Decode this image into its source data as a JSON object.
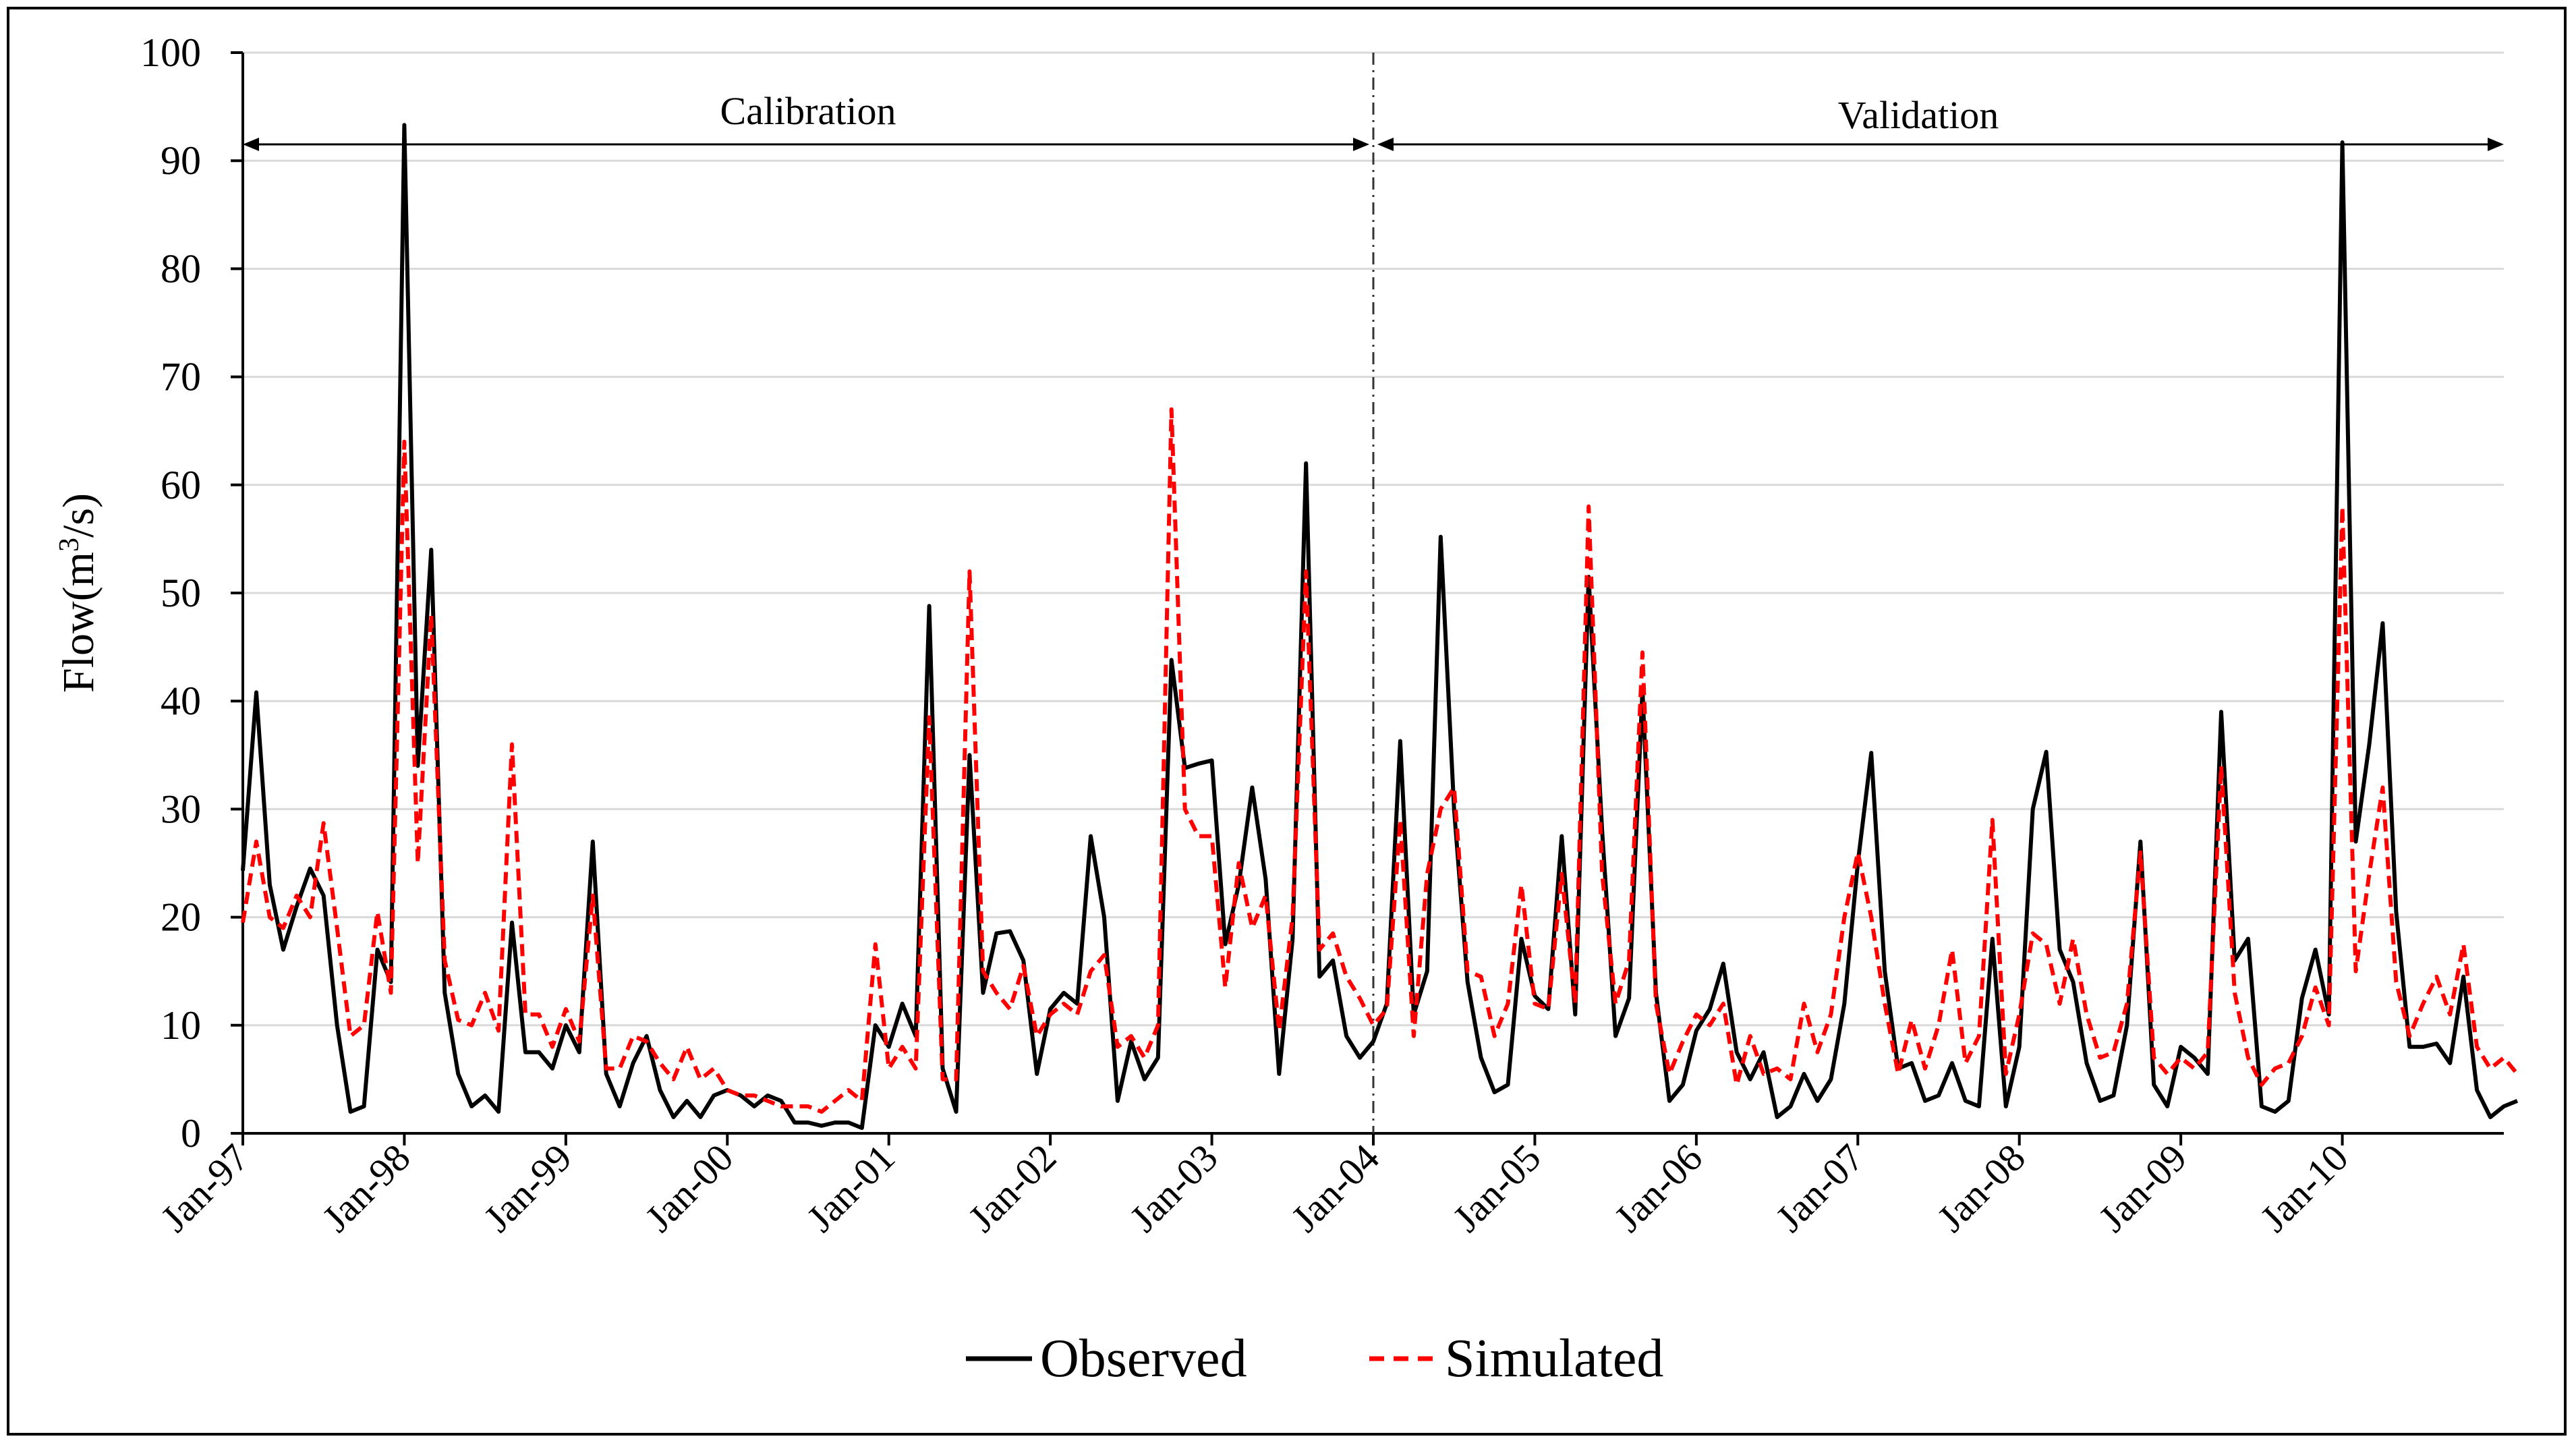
{
  "chart_data": {
    "type": "line",
    "title": "",
    "xlabel": "",
    "ylabel": "Flow(m3/s)",
    "ylabel_parts": {
      "base": "Flow(m",
      "sup": "3",
      "tail": "/s)"
    },
    "ylim": [
      0,
      100
    ],
    "yticks": [
      0,
      10,
      20,
      30,
      40,
      50,
      60,
      70,
      80,
      90,
      100
    ],
    "grid": true,
    "x_start": "Jan-97",
    "x_tick_labels": [
      "Jan-97",
      "Jan-98",
      "Jan-99",
      "Jan-00",
      "Jan-01",
      "Jan-02",
      "Jan-03",
      "Jan-04",
      "Jan-05",
      "Jan-06",
      "Jan-07",
      "Jan-08",
      "Jan-09",
      "Jan-10"
    ],
    "x_months_total": 168,
    "annotations": {
      "calibration": {
        "label": "Calibration",
        "from_month": 0,
        "to_month": 84
      },
      "validation": {
        "label": "Validation",
        "from_month": 84,
        "to_month": 168
      },
      "divider_month": 84
    },
    "legend": {
      "placement": "bottom-center"
    },
    "series": [
      {
        "name": "Observed",
        "color": "#000000",
        "style": "solid",
        "values": [
          24.3,
          40.8,
          23.0,
          17.0,
          21.0,
          24.5,
          22.0,
          10.0,
          2.0,
          2.5,
          17.0,
          14.0,
          93.3,
          34.0,
          54.0,
          13.0,
          5.5,
          2.5,
          3.5,
          2.0,
          19.5,
          7.5,
          7.5,
          6.0,
          10.0,
          7.5,
          27.0,
          5.5,
          2.5,
          6.5,
          9.0,
          4.0,
          1.5,
          3.0,
          1.5,
          3.5,
          4.0,
          3.5,
          2.5,
          3.5,
          3.0,
          1.0,
          1.0,
          0.7,
          1.0,
          1.0,
          0.5,
          10.0,
          8.0,
          12.0,
          9.0,
          48.8,
          6.0,
          2.0,
          35.0,
          13.0,
          18.5,
          18.7,
          16.0,
          5.5,
          11.5,
          13.0,
          12.0,
          27.5,
          20.0,
          3.0,
          8.5,
          5.0,
          7.0,
          43.8,
          33.8,
          34.2,
          34.5,
          17.5,
          23.0,
          32.0,
          23.5,
          5.5,
          18.0,
          62.0,
          14.5,
          16.0,
          9.0,
          7.0,
          8.5,
          12.0,
          36.3,
          11.0,
          15.0,
          55.2,
          30.0,
          14.0,
          7.0,
          3.8,
          4.5,
          18.0,
          12.7,
          11.5,
          27.5,
          11.0,
          51.5,
          28.0,
          9.0,
          12.5,
          41.0,
          13.0,
          3.0,
          4.5,
          9.5,
          11.5,
          15.7,
          7.5,
          5.0,
          7.5,
          1.5,
          2.5,
          5.5,
          3.0,
          5.0,
          12.0,
          25.0,
          35.2,
          15.0,
          6.0,
          6.5,
          3.0,
          3.5,
          6.5,
          3.0,
          2.5,
          18.0,
          2.5,
          8.0,
          30.0,
          35.3,
          17.0,
          14.0,
          6.5,
          3.0,
          3.5,
          10.0,
          27.0,
          4.5,
          2.5,
          8.0,
          7.0,
          5.5,
          39.0,
          16.0,
          18.0,
          2.5,
          2.0,
          3.0,
          12.5,
          17.0,
          11.0,
          91.7,
          27.0,
          36.0,
          47.2,
          20.5,
          8.0,
          8.0,
          8.3,
          6.5,
          14.5,
          4.0,
          1.5,
          2.5,
          3.0
        ]
      },
      {
        "name": "Simulated",
        "color": "#ff0000",
        "style": "dashed",
        "values": [
          19.5,
          27.0,
          20.0,
          19.0,
          22.0,
          20.0,
          28.7,
          19.0,
          9.0,
          10.0,
          20.5,
          13.0,
          64.0,
          25.0,
          48.0,
          16.0,
          10.5,
          10.0,
          13.0,
          9.5,
          36.0,
          11.0,
          11.0,
          8.0,
          11.5,
          8.5,
          22.0,
          6.0,
          6.0,
          9.0,
          8.5,
          6.5,
          5.0,
          8.0,
          5.0,
          6.0,
          4.0,
          3.5,
          3.5,
          3.0,
          2.5,
          2.5,
          2.5,
          2.0,
          3.0,
          4.0,
          3.0,
          17.5,
          6.0,
          8.0,
          6.0,
          38.5,
          5.0,
          5.0,
          52.0,
          15.0,
          13.0,
          11.5,
          15.5,
          9.0,
          11.0,
          12.0,
          11.0,
          15.0,
          16.5,
          8.0,
          9.0,
          7.0,
          10.0,
          67.0,
          30.0,
          27.5,
          27.5,
          13.5,
          25.0,
          19.0,
          22.0,
          9.5,
          20.0,
          52.0,
          17.0,
          18.5,
          14.5,
          12.5,
          10.0,
          11.5,
          29.0,
          9.0,
          24.0,
          30.0,
          32.0,
          15.0,
          14.5,
          9.0,
          12.0,
          23.0,
          12.0,
          11.5,
          24.0,
          12.0,
          58.0,
          24.0,
          12.0,
          16.0,
          44.5,
          12.0,
          5.5,
          8.5,
          11.0,
          10.0,
          12.0,
          4.5,
          9.0,
          5.5,
          6.0,
          5.0,
          12.0,
          7.5,
          11.0,
          20.0,
          26.0,
          20.0,
          12.0,
          5.5,
          10.5,
          6.0,
          10.0,
          17.0,
          6.5,
          9.0,
          29.0,
          5.5,
          11.0,
          18.5,
          17.5,
          12.0,
          18.0,
          11.0,
          7.0,
          7.5,
          12.0,
          26.0,
          7.0,
          5.5,
          7.0,
          6.0,
          7.5,
          34.0,
          13.0,
          7.0,
          4.5,
          6.0,
          6.5,
          9.0,
          13.5,
          10.0,
          58.0,
          15.0,
          24.0,
          32.0,
          14.0,
          9.0,
          12.0,
          14.5,
          11.0,
          17.5,
          8.0,
          6.0,
          7.0,
          5.5
        ]
      }
    ]
  }
}
